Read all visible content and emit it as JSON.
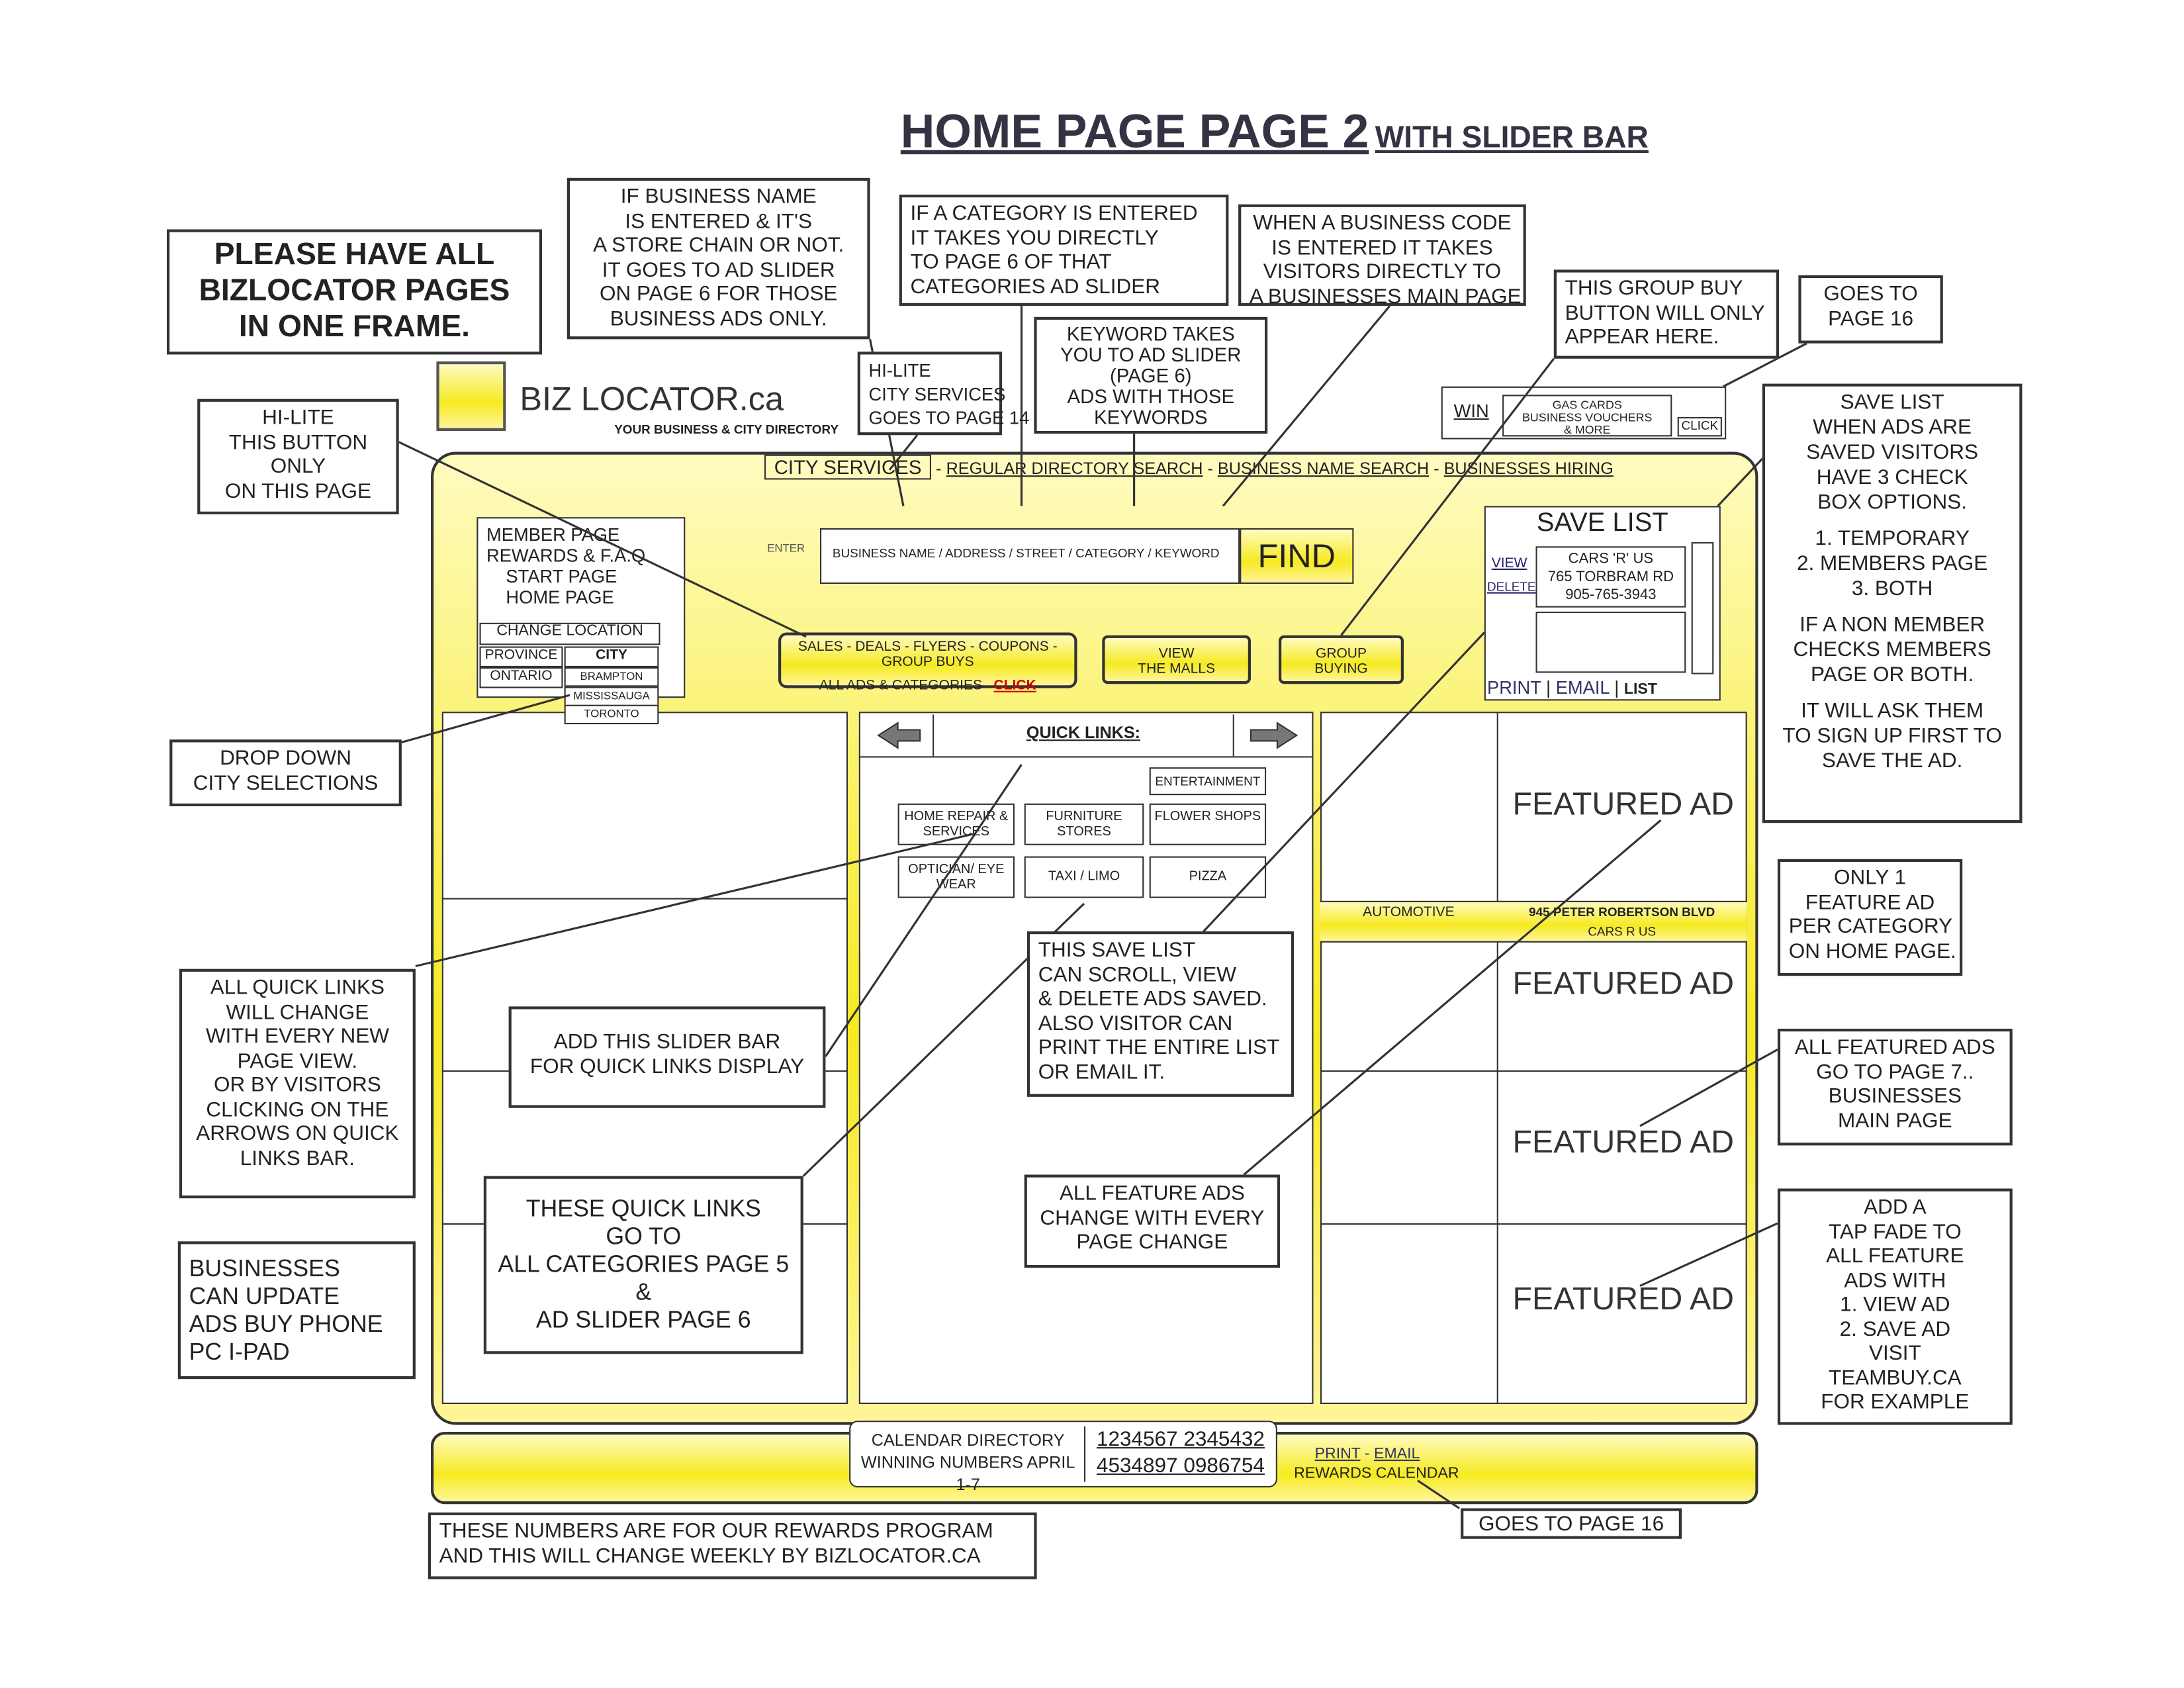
{
  "header": {
    "title": "HOME PAGE PAGE 2",
    "subtitle": "WITH SLIDER BAR"
  },
  "notes": [
    [
      "PLEASE HAVE ALL",
      "BIZLOCATOR PAGES",
      "IN ONE FRAME."
    ],
    [
      "IF BUSINESS NAME",
      "IS ENTERED & IT'S",
      "A STORE CHAIN OR NOT.",
      "IT GOES TO AD SLIDER",
      "ON PAGE 6 FOR THOSE",
      "BUSINESS ADS ONLY."
    ],
    [
      "IF A CATEGORY IS ENTERED",
      "IT TAKES YOU DIRECTLY",
      "TO PAGE 6 OF THAT",
      "CATEGORIES AD SLIDER"
    ],
    [
      "WHEN A BUSINESS CODE",
      "IS ENTERED IT TAKES",
      "VISITORS DIRECTLY TO",
      "A BUSINESSES MAIN PAGE"
    ],
    [
      "KEYWORD TAKES",
      "YOU TO AD SLIDER",
      "(PAGE 6)",
      "ADS WITH THOSE",
      "KEYWORDS"
    ],
    [
      "HI-LITE",
      "CITY SERVICES",
      "GOES TO PAGE 14"
    ],
    [
      "THIS GROUP BUY",
      "BUTTON WILL ONLY",
      "APPEAR HERE."
    ],
    [
      "GOES TO",
      "PAGE 16"
    ],
    [
      "SAVE LIST",
      "WHEN ADS ARE",
      "SAVED VISITORS",
      "HAVE 3 CHECK",
      "BOX OPTIONS.",
      "",
      "1. TEMPORARY",
      "2. MEMBERS PAGE",
      "3. BOTH",
      "",
      "IF A NON MEMBER",
      "CHECKS MEMBERS",
      "PAGE OR BOTH.",
      "",
      "IT WILL ASK THEM",
      "TO SIGN UP FIRST TO",
      "SAVE THE AD."
    ],
    [
      "HI-LITE",
      "THIS BUTTON",
      "ONLY",
      "ON THIS PAGE"
    ],
    [
      "DROP DOWN",
      "CITY SELECTIONS"
    ],
    [
      "ONLY 1",
      "FEATURE AD",
      "PER CATEGORY",
      "ON HOME PAGE."
    ],
    [
      "ALL QUICK LINKS",
      "WILL CHANGE",
      "WITH EVERY NEW",
      "PAGE VIEW.",
      "OR BY VISITORS",
      "CLICKING ON THE",
      "ARROWS ON QUICK",
      "LINKS BAR."
    ],
    [
      "ADD THIS SLIDER BAR",
      "FOR QUICK LINKS DISPLAY"
    ],
    [
      "THIS SAVE LIST",
      "CAN SCROLL, VIEW",
      "& DELETE ADS SAVED.",
      "ALSO VISITOR CAN",
      "PRINT THE ENTIRE LIST",
      "OR EMAIL IT."
    ],
    [
      "ALL FEATURED ADS",
      "GO TO PAGE 7..",
      "BUSINESSES",
      "MAIN PAGE"
    ],
    [
      "BUSINESSES",
      "CAN UPDATE",
      "ADS BUY PHONE",
      "PC I-PAD"
    ],
    [
      "THESE QUICK LINKS",
      "GO TO",
      "ALL CATEGORIES PAGE 5",
      "&",
      "AD SLIDER PAGE 6"
    ],
    [
      "ALL FEATURE ADS",
      "CHANGE WITH EVERY",
      "PAGE CHANGE"
    ],
    [
      "ADD A",
      "TAP FADE TO",
      "ALL FEATURE",
      "ADS WITH",
      "1. VIEW AD",
      "2. SAVE AD",
      "VISIT",
      "TEAMBUY.CA",
      "FOR EXAMPLE"
    ],
    [
      "THESE NUMBERS ARE FOR OUR REWARDS PROGRAM",
      "AND THIS WILL CHANGE WEEKLY BY BIZLOCATOR.CA"
    ],
    [
      "GOES TO PAGE 16"
    ]
  ],
  "mockup": {
    "logo": {
      "name": "BIZ LOCATOR.ca",
      "tagline": "YOUR BUSINESS & CITY DIRECTORY"
    },
    "nav": [
      "CITY SERVICES",
      "REGULAR DIRECTORY SEARCH",
      "BUSINESS NAME SEARCH",
      "BUSINESSES HIRING"
    ],
    "menu": [
      "MEMBER PAGE",
      "REWARDS & F.A.Q",
      "START PAGE",
      "HOME PAGE"
    ],
    "location": {
      "title": "CHANGE LOCATION",
      "province_label": "PROVINCE",
      "city_label": "CITY",
      "province": "ONTARIO",
      "cities": [
        "BRAMPTON",
        "MISSISSAUGA",
        "TORONTO"
      ]
    },
    "search": {
      "enter": "ENTER",
      "placeholder": "BUSINESS NAME / ADDRESS / STREET / CATEGORY / KEYWORD",
      "button": "FIND"
    },
    "sales": {
      "line1": "SALES - DEALS - FLYERS - COUPONS -GROUP BUYS",
      "line2": "ALL ADS & CATEGORIES",
      "click": "CLICK"
    },
    "malls": [
      "VIEW",
      "THE MALLS"
    ],
    "group": [
      "GROUP",
      "BUYING"
    ],
    "win": {
      "label": "WIN",
      "lines": [
        "GAS CARDS",
        "BUSINESS VOUCHERS",
        "& MORE"
      ],
      "click": "CLICK"
    },
    "save_list": {
      "title": "SAVE LIST",
      "view": "VIEW",
      "delete": "DELETE",
      "entry": [
        "CARS 'R' US",
        "765 TORBRAM RD",
        "905-765-3943"
      ],
      "print": "PRINT",
      "email": "EMAIL",
      "list": "LIST"
    },
    "quick_links": {
      "title": "QUICK LINKS:",
      "links": [
        "ENTERTAINMENT",
        "HOME REPAIR & SERVICES",
        "FURNITURE STORES",
        "FLOWER SHOPS",
        "OPTICIAN/ EYE WEAR",
        "TAXI / LIMO",
        "PIZZA"
      ]
    },
    "featured": [
      "FEATURED AD",
      "FEATURED AD",
      "FEATURED AD",
      "FEATURED AD"
    ],
    "featured_bar": {
      "category": "AUTOMOTIVE",
      "address": "945 PETER ROBERTSON BLVD",
      "name": "CARS R US"
    },
    "calendar": {
      "line1": "CALENDAR DIRECTORY",
      "line2": "WINNING NUMBERS APRIL 1-7",
      "numbers": [
        "1234567 2345432",
        "4534897 0986754"
      ],
      "print": "PRINT",
      "email": "EMAIL",
      "rewards": "REWARDS CALENDAR"
    }
  }
}
